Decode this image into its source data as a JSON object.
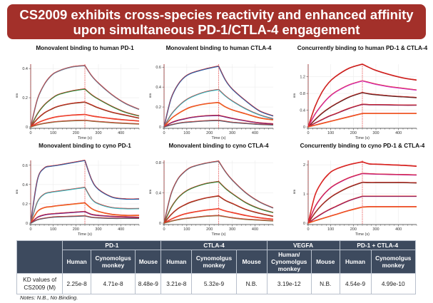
{
  "title": "CS2009 exhibits cross-species reactivity and enhanced affinity upon simultaneous PD-1/CTLA-4 engagement",
  "chart_data": [
    {
      "type": "line",
      "title": "Monovalent binding to human PD-1",
      "xlabel": "Time (s)",
      "ylabel": "nm",
      "xlim": [
        0,
        480
      ],
      "ylim": [
        0,
        0.43
      ],
      "xticks": [
        0,
        100,
        200,
        300,
        400
      ],
      "yticks": [
        0,
        0.2,
        0.4
      ],
      "yticklabels": [
        "0",
        "0.2",
        "0.4"
      ],
      "grid": true,
      "fit_color": "#e8302a",
      "marker_line_x": 240,
      "x": [
        0,
        30,
        60,
        90,
        120,
        180,
        240,
        270,
        300,
        360,
        420,
        480
      ],
      "series": [
        {
          "color": "#6a7a90",
          "values": [
            0,
            0.19,
            0.29,
            0.35,
            0.38,
            0.41,
            0.42,
            0.35,
            0.3,
            0.22,
            0.16,
            0.12
          ]
        },
        {
          "color": "#2a8a3a",
          "values": [
            0,
            0.09,
            0.15,
            0.19,
            0.22,
            0.245,
            0.26,
            0.22,
            0.19,
            0.14,
            0.1,
            0.075
          ]
        },
        {
          "color": "#8b3a20",
          "values": [
            0,
            0.055,
            0.095,
            0.12,
            0.14,
            0.16,
            0.17,
            0.15,
            0.13,
            0.1,
            0.08,
            0.06
          ]
        },
        {
          "color": "#f04a30",
          "values": [
            0,
            0.027,
            0.046,
            0.06,
            0.07,
            0.08,
            0.085,
            0.075,
            0.068,
            0.056,
            0.047,
            0.04
          ]
        },
        {
          "color": "#8a7040",
          "values": [
            0,
            0.014,
            0.024,
            0.031,
            0.036,
            0.042,
            0.045,
            0.04,
            0.036,
            0.029,
            0.024,
            0.02
          ]
        }
      ]
    },
    {
      "type": "line",
      "title": "Monovalent binding to human CTLA-4",
      "xlabel": "Time (s)",
      "ylabel": "nm",
      "xlim": [
        0,
        480
      ],
      "ylim": [
        0,
        0.63
      ],
      "xticks": [
        0,
        100,
        200,
        300,
        400
      ],
      "yticks": [
        0,
        0.2,
        0.4,
        0.6
      ],
      "yticklabels": [
        "0",
        "0.2",
        "0.4",
        "0.6"
      ],
      "grid": true,
      "fit_color": "#e8302a",
      "marker_line_x": 240,
      "x": [
        0,
        30,
        60,
        90,
        120,
        180,
        240,
        270,
        300,
        360,
        420,
        480
      ],
      "series": [
        {
          "color": "#1f5fa8",
          "values": [
            0,
            0.28,
            0.42,
            0.5,
            0.54,
            0.58,
            0.61,
            0.47,
            0.38,
            0.26,
            0.16,
            0.11
          ]
        },
        {
          "color": "#30b8c0",
          "values": [
            0,
            0.12,
            0.2,
            0.26,
            0.3,
            0.35,
            0.375,
            0.31,
            0.26,
            0.18,
            0.12,
            0.08
          ]
        },
        {
          "color": "#f07020",
          "values": [
            0,
            0.08,
            0.13,
            0.17,
            0.2,
            0.23,
            0.245,
            0.2,
            0.17,
            0.13,
            0.09,
            0.07
          ]
        },
        {
          "color": "#702080",
          "values": [
            0,
            0.04,
            0.065,
            0.08,
            0.095,
            0.11,
            0.115,
            0.1,
            0.085,
            0.06,
            0.04,
            0.03
          ]
        },
        {
          "color": "#506070",
          "values": [
            0,
            0.02,
            0.035,
            0.045,
            0.05,
            0.06,
            0.065,
            0.055,
            0.045,
            0.035,
            0.025,
            0.02
          ]
        }
      ]
    },
    {
      "type": "line",
      "title": "Concurrently binding to human PD-1 & CTLA-4",
      "xlabel": "Time (s)",
      "ylabel": "nm",
      "xlim": [
        0,
        480
      ],
      "ylim": [
        0,
        1.5
      ],
      "xticks": [
        0,
        100,
        200,
        300,
        400
      ],
      "yticks": [
        0,
        0.4,
        0.8,
        1.2
      ],
      "yticklabels": [
        "0",
        "0.4",
        "0.8",
        "1.2"
      ],
      "grid": true,
      "fit_color": "#e8302a",
      "marker_line_x": 240,
      "x": [
        0,
        30,
        60,
        90,
        120,
        180,
        240,
        270,
        300,
        360,
        420,
        480
      ],
      "series": [
        {
          "color": "#c01818",
          "values": [
            0,
            0.48,
            0.82,
            1.05,
            1.2,
            1.4,
            1.5,
            1.42,
            1.35,
            1.25,
            1.17,
            1.12
          ]
        },
        {
          "color": "#d030c0",
          "values": [
            0,
            0.3,
            0.52,
            0.7,
            0.83,
            1.0,
            1.1,
            1.06,
            1.02,
            0.96,
            0.92,
            0.88
          ]
        },
        {
          "color": "#502020",
          "values": [
            0,
            0.17,
            0.32,
            0.44,
            0.54,
            0.71,
            0.82,
            0.79,
            0.77,
            0.74,
            0.72,
            0.7
          ]
        },
        {
          "color": "#902050",
          "values": [
            0,
            0.09,
            0.17,
            0.25,
            0.31,
            0.44,
            0.54,
            0.53,
            0.53,
            0.525,
            0.52,
            0.52
          ]
        },
        {
          "color": "#f06020",
          "values": [
            0,
            0.04,
            0.08,
            0.12,
            0.16,
            0.24,
            0.32,
            0.32,
            0.32,
            0.32,
            0.32,
            0.32
          ]
        }
      ]
    },
    {
      "type": "line",
      "title": "Monovalent binding to cyno PD-1",
      "xlabel": "Time (s)",
      "ylabel": "nm",
      "xlim": [
        0,
        480
      ],
      "ylim": [
        0,
        0.65
      ],
      "xticks": [
        0,
        100,
        200,
        300,
        400
      ],
      "yticks": [
        0,
        0.2,
        0.4,
        0.6
      ],
      "yticklabels": [
        "0",
        "0.2",
        "0.4",
        "0.6"
      ],
      "grid": true,
      "fit_color": "#e8302a",
      "marker_line_x": 240,
      "x": [
        0,
        30,
        60,
        90,
        120,
        180,
        240,
        270,
        300,
        360,
        420,
        480
      ],
      "series": [
        {
          "color": "#1f5fa8",
          "values": [
            0,
            0.45,
            0.57,
            0.59,
            0.6,
            0.625,
            0.65,
            0.45,
            0.35,
            0.27,
            0.25,
            0.25
          ]
        },
        {
          "color": "#30b8c0",
          "values": [
            0,
            0.22,
            0.3,
            0.32,
            0.33,
            0.35,
            0.37,
            0.25,
            0.2,
            0.16,
            0.15,
            0.15
          ]
        },
        {
          "color": "#f07020",
          "values": [
            0,
            0.12,
            0.16,
            0.17,
            0.18,
            0.195,
            0.21,
            0.15,
            0.12,
            0.09,
            0.08,
            0.08
          ]
        },
        {
          "color": "#702080",
          "values": [
            0,
            0.06,
            0.085,
            0.095,
            0.1,
            0.11,
            0.12,
            0.09,
            0.08,
            0.07,
            0.065,
            0.06
          ]
        },
        {
          "color": "#506070",
          "values": [
            0,
            0.035,
            0.05,
            0.06,
            0.065,
            0.07,
            0.075,
            0.06,
            0.055,
            0.05,
            0.05,
            0.05
          ]
        }
      ]
    },
    {
      "type": "line",
      "title": "Monovalent binding to cyno CTLA-4",
      "xlabel": "Time (s)",
      "ylabel": "nm",
      "xlim": [
        0,
        480
      ],
      "ylim": [
        0,
        0.83
      ],
      "xticks": [
        0,
        100,
        200,
        300,
        400
      ],
      "yticks": [
        0,
        0.4,
        0.8
      ],
      "yticklabels": [
        "0",
        "0.4",
        "0.8"
      ],
      "grid": true,
      "fit_color": "#e8302a",
      "marker_line_x": 240,
      "x": [
        0,
        30,
        60,
        90,
        120,
        180,
        240,
        270,
        300,
        360,
        420,
        480
      ],
      "series": [
        {
          "color": "#607080",
          "values": [
            0,
            0.38,
            0.58,
            0.68,
            0.74,
            0.79,
            0.82,
            0.68,
            0.57,
            0.4,
            0.28,
            0.2
          ]
        },
        {
          "color": "#2a8a3a",
          "values": [
            0,
            0.2,
            0.33,
            0.41,
            0.46,
            0.52,
            0.55,
            0.46,
            0.39,
            0.27,
            0.19,
            0.14
          ]
        },
        {
          "color": "#8b3a20",
          "values": [
            0,
            0.11,
            0.19,
            0.24,
            0.28,
            0.33,
            0.36,
            0.3,
            0.26,
            0.18,
            0.13,
            0.09
          ]
        },
        {
          "color": "#f04a30",
          "values": [
            0,
            0.05,
            0.09,
            0.12,
            0.14,
            0.17,
            0.19,
            0.16,
            0.14,
            0.1,
            0.07,
            0.05
          ]
        },
        {
          "color": "#8a7040",
          "values": [
            0,
            0.025,
            0.045,
            0.06,
            0.07,
            0.09,
            0.1,
            0.085,
            0.07,
            0.05,
            0.04,
            0.03
          ]
        }
      ]
    },
    {
      "type": "line",
      "title": "Concurrently binding to cyno PD-1 & CTLA-4",
      "xlabel": "Time (s)",
      "ylabel": "nm",
      "xlim": [
        0,
        480
      ],
      "ylim": [
        0,
        2.15
      ],
      "xticks": [
        0,
        100,
        200,
        300,
        400
      ],
      "yticks": [
        0,
        1,
        2
      ],
      "yticklabels": [
        "0",
        "1",
        "2"
      ],
      "grid": true,
      "fit_color": "#e8302a",
      "marker_line_x": 240,
      "x": [
        0,
        30,
        60,
        90,
        120,
        180,
        240,
        270,
        300,
        360,
        420,
        480
      ],
      "series": [
        {
          "color": "#d02020",
          "values": [
            0,
            0.95,
            1.4,
            1.68,
            1.84,
            2.0,
            2.1,
            2.03,
            2.02,
            2.0,
            1.98,
            1.95
          ]
        },
        {
          "color": "#c02080",
          "values": [
            0,
            0.55,
            0.9,
            1.15,
            1.32,
            1.55,
            1.7,
            1.69,
            1.68,
            1.67,
            1.66,
            1.65
          ]
        },
        {
          "color": "#7a2a20",
          "values": [
            0,
            0.35,
            0.62,
            0.83,
            0.99,
            1.23,
            1.4,
            1.39,
            1.39,
            1.39,
            1.39,
            1.38
          ]
        },
        {
          "color": "#902060",
          "values": [
            0,
            0.17,
            0.32,
            0.45,
            0.56,
            0.77,
            0.92,
            0.92,
            0.92,
            0.92,
            0.92,
            0.92
          ]
        },
        {
          "color": "#f06020",
          "values": [
            0,
            0.08,
            0.15,
            0.22,
            0.29,
            0.43,
            0.55,
            0.56,
            0.56,
            0.56,
            0.56,
            0.56
          ]
        }
      ]
    }
  ],
  "table": {
    "groups": [
      "PD-1",
      "CTLA-4",
      "VEGFA",
      "PD-1 + CTLA-4"
    ],
    "subheaders": [
      "Human",
      "Cynomolgus monkey",
      "Mouse",
      "Human",
      "Cynomolgus monkey",
      "Mouse",
      "Human/ Cynomolgus monkey",
      "Mouse",
      "Human",
      "Cynomolgus monkey"
    ],
    "row_label": "KD values of CS2009 (M)",
    "values": [
      "2.25e-8",
      "4.71e-8",
      "8.48e-9",
      "3.21e-8",
      "5.32e-9",
      "N.B.",
      "3.19e-12",
      "N.B.",
      "4.54e-9",
      "4.99e-10"
    ],
    "header_color": "#3d4a5e"
  },
  "notes": "Notes: N.B., No Binding."
}
